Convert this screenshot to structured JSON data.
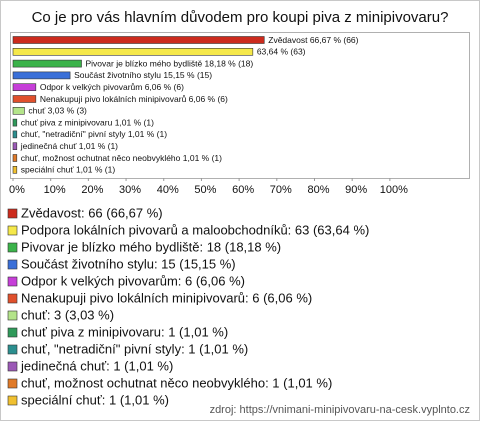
{
  "chart_data": {
    "type": "bar",
    "orientation": "horizontal",
    "title": "Co je pro vás hlavním důvodem pro koupi piva z minipivovaru?",
    "categories": [
      "Zvědavost",
      "Podpora lokálních pivovarů a maloobchodníků",
      "Pivovar je blízko mého bydliště",
      "Součást životního stylu",
      "Odpor k velkých pivovarům",
      "Nenakupuji pivo lokálních minipivovarů",
      "chuť",
      "chuť piva z minipivovaru",
      "chuť, \"netradiční\" pivní styly",
      "jedinečná chuť",
      "chuť, možnost ochutnat něco neobvyklého",
      "speciální chuť"
    ],
    "values": [
      66.67,
      63.64,
      18.18,
      15.15,
      6.06,
      6.06,
      3.03,
      1.01,
      1.01,
      1.01,
      1.01,
      1.01
    ],
    "value_labels": [
      "Zvědavost 66,67 % (66)",
      "63,64 % (63)",
      "Pivovar je blízko mého bydliště 18,18 % (18)",
      "Součást životního stylu 15,15 % (15)",
      "Odpor k velkých pivovarům 6,06 % (6)",
      "Nenakupuji pivo lokálních minipivovarů 6,06 % (6)",
      "chuť 3,03 % (3)",
      "chuť piva z minipivovaru 1,01 % (1)",
      "chuť, \"netradiční\" pivní styly 1,01 % (1)",
      "jedinečná chuť 1,01 % (1)",
      "chuť, možnost ochutnat něco neobvyklého 1,01 % (1)",
      "speciální chuť 1,01 % (1)"
    ],
    "legend_labels": [
      "Zvědavost: 66 (66,67 %)",
      "Podpora lokálních pivovarů a maloobchodníků: 63 (63,64 %)",
      "Pivovar je blízko mého bydliště: 18 (18,18 %)",
      "Součást životního stylu: 15 (15,15 %)",
      "Odpor k velkých pivovarům: 6 (6,06 %)",
      "Nenakupuji pivo lokálních minipivovarů: 6 (6,06 %)",
      "chuť: 3 (3,03 %)",
      "chuť piva z minipivovaru: 1 (1,01 %)",
      "chuť, \"netradiční\" pivní styly: 1 (1,01 %)",
      "jedinečná chuť: 1 (1,01 %)",
      "chuť, možnost ochutnat něco neobvyklého: 1 (1,01 %)",
      "speciální chuť: 1 (1,01 %)"
    ],
    "colors": [
      "#cc2b1d",
      "#f5e84a",
      "#3bb34a",
      "#3a6fd8",
      "#c63fd8",
      "#e0502c",
      "#b4e48a",
      "#2f9a5a",
      "#2b8f8f",
      "#9b59b6",
      "#e07a28",
      "#f0c030"
    ],
    "xlim": [
      0,
      121
    ],
    "xticks": [
      {
        "value": 0,
        "label": "0%"
      },
      {
        "value": 10,
        "label": "10%"
      },
      {
        "value": 20,
        "label": "20%"
      },
      {
        "value": 30,
        "label": "30%"
      },
      {
        "value": 40,
        "label": "40%"
      },
      {
        "value": 50,
        "label": "50%"
      },
      {
        "value": 60,
        "label": "60%"
      },
      {
        "value": 70,
        "label": "70%"
      },
      {
        "value": 80,
        "label": "80%"
      },
      {
        "value": 90,
        "label": "90%"
      },
      {
        "value": 100,
        "label": "100%"
      }
    ],
    "source": "zdroj: https://vnimani-minipivovaru-na-cesk.vyplnto.cz"
  }
}
